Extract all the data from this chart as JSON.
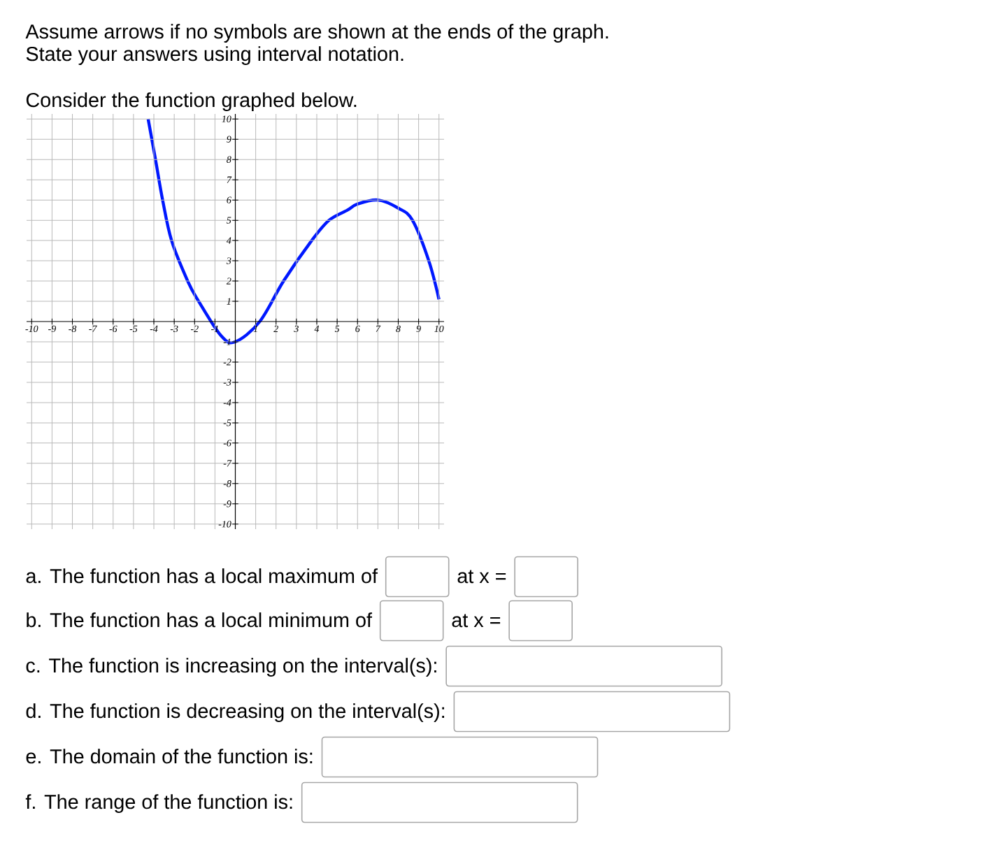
{
  "chart_data": {
    "type": "line",
    "title": "Assume arrows if no symbols are shown at the ends of the graph.",
    "subtitle": "State your answers using interval notation.",
    "annotations": [
      "Consider the function graphed below.",
      "a. The function has a local maximum of",
      "at x =",
      "b. The function has a local minimum of",
      "at x =",
      "c. The function is increasing on the interval(s):",
      "d. The function is decreasing on the interval(s):",
      "e. The domain of the function is:",
      "f. The range of the function is:"
    ],
    "x": [
      -4.28,
      -3.92,
      -3.57,
      -3.13,
      -2.34,
      -1.8,
      -0.7,
      0,
      1.2,
      2.37,
      3.75,
      4.6,
      5.5,
      6,
      7,
      8,
      8.7,
      9.5,
      10
    ],
    "series": [
      {
        "color": "#0018ff",
        "values": [
          10,
          8,
          6,
          4,
          2,
          1,
          -0.7,
          -1,
          0,
          2,
          4,
          5,
          5.5,
          5.8,
          6,
          5.6,
          5,
          3,
          1.1
        ]
      }
    ],
    "xlim": [
      -10.25,
      10.25
    ],
    "ylim": [
      -10.25,
      10.25
    ],
    "xticks": [
      -10,
      -9,
      -8,
      -7,
      -6,
      -5,
      -4,
      -3,
      -2,
      -1,
      1,
      2,
      3,
      4,
      5,
      6,
      7,
      8,
      9,
      10
    ],
    "yticks": [
      -10,
      -9,
      -8,
      -7,
      -6,
      -5,
      -4,
      -3,
      -2,
      -1,
      1,
      2,
      3,
      4,
      5,
      6,
      7,
      8,
      9,
      10
    ],
    "grid": true,
    "marker": "none",
    "line_style": "solid"
  }
}
